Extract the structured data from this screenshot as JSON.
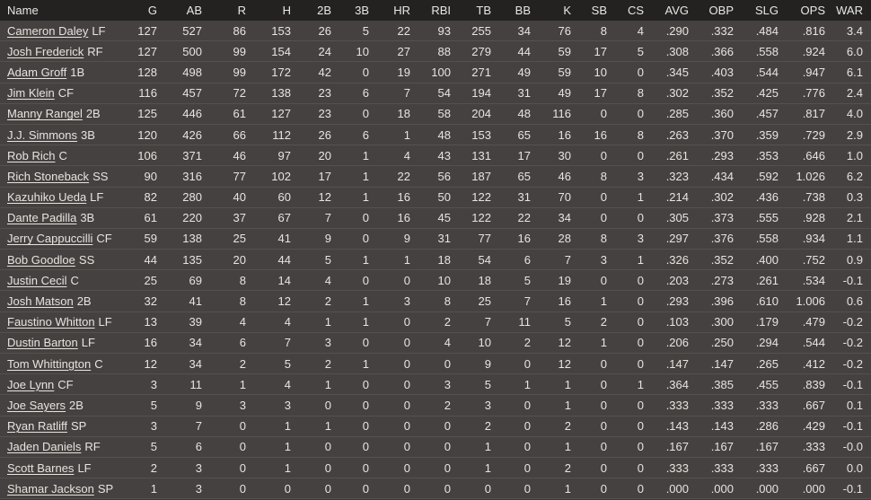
{
  "colors": {
    "header_bg": "#242220",
    "row_bg": "#454140",
    "row_divider": "#55514c",
    "text": "#e7e4df"
  },
  "table": {
    "columns": [
      {
        "key": "name",
        "label": "Name"
      },
      {
        "key": "g",
        "label": "G"
      },
      {
        "key": "ab",
        "label": "AB"
      },
      {
        "key": "r",
        "label": "R"
      },
      {
        "key": "h",
        "label": "H"
      },
      {
        "key": "2b",
        "label": "2B"
      },
      {
        "key": "3b",
        "label": "3B"
      },
      {
        "key": "hr",
        "label": "HR"
      },
      {
        "key": "rbi",
        "label": "RBI"
      },
      {
        "key": "tb",
        "label": "TB"
      },
      {
        "key": "bb",
        "label": "BB"
      },
      {
        "key": "k",
        "label": "K"
      },
      {
        "key": "sb",
        "label": "SB"
      },
      {
        "key": "cs",
        "label": "CS"
      },
      {
        "key": "avg",
        "label": "AVG"
      },
      {
        "key": "obp",
        "label": "OBP"
      },
      {
        "key": "slg",
        "label": "SLG"
      },
      {
        "key": "ops",
        "label": "OPS"
      },
      {
        "key": "war",
        "label": "WAR"
      }
    ],
    "rows": [
      {
        "name": "Cameron Daley",
        "position": "LF",
        "stats": [
          "127",
          "527",
          "86",
          "153",
          "26",
          "5",
          "22",
          "93",
          "255",
          "34",
          "76",
          "8",
          "4",
          ".290",
          ".332",
          ".484",
          ".816",
          "3.4"
        ]
      },
      {
        "name": "Josh Frederick",
        "position": "RF",
        "stats": [
          "127",
          "500",
          "99",
          "154",
          "24",
          "10",
          "27",
          "88",
          "279",
          "44",
          "59",
          "17",
          "5",
          ".308",
          ".366",
          ".558",
          ".924",
          "6.0"
        ]
      },
      {
        "name": "Adam Groff",
        "position": "1B",
        "stats": [
          "128",
          "498",
          "99",
          "172",
          "42",
          "0",
          "19",
          "100",
          "271",
          "49",
          "59",
          "10",
          "0",
          ".345",
          ".403",
          ".544",
          ".947",
          "6.1"
        ]
      },
      {
        "name": "Jim Klein",
        "position": "CF",
        "stats": [
          "116",
          "457",
          "72",
          "138",
          "23",
          "6",
          "7",
          "54",
          "194",
          "31",
          "49",
          "17",
          "8",
          ".302",
          ".352",
          ".425",
          ".776",
          "2.4"
        ]
      },
      {
        "name": "Manny Rangel",
        "position": "2B",
        "stats": [
          "125",
          "446",
          "61",
          "127",
          "23",
          "0",
          "18",
          "58",
          "204",
          "48",
          "116",
          "0",
          "0",
          ".285",
          ".360",
          ".457",
          ".817",
          "4.0"
        ]
      },
      {
        "name": "J.J. Simmons",
        "position": "3B",
        "stats": [
          "120",
          "426",
          "66",
          "112",
          "26",
          "6",
          "1",
          "48",
          "153",
          "65",
          "16",
          "16",
          "8",
          ".263",
          ".370",
          ".359",
          ".729",
          "2.9"
        ]
      },
      {
        "name": "Rob Rich",
        "position": "C",
        "stats": [
          "106",
          "371",
          "46",
          "97",
          "20",
          "1",
          "4",
          "43",
          "131",
          "17",
          "30",
          "0",
          "0",
          ".261",
          ".293",
          ".353",
          ".646",
          "1.0"
        ]
      },
      {
        "name": "Rich Stoneback",
        "position": "SS",
        "stats": [
          "90",
          "316",
          "77",
          "102",
          "17",
          "1",
          "22",
          "56",
          "187",
          "65",
          "46",
          "8",
          "3",
          ".323",
          ".434",
          ".592",
          "1.026",
          "6.2"
        ]
      },
      {
        "name": "Kazuhiko Ueda",
        "position": "LF",
        "stats": [
          "82",
          "280",
          "40",
          "60",
          "12",
          "1",
          "16",
          "50",
          "122",
          "31",
          "70",
          "0",
          "1",
          ".214",
          ".302",
          ".436",
          ".738",
          "0.3"
        ]
      },
      {
        "name": "Dante Padilla",
        "position": "3B",
        "stats": [
          "61",
          "220",
          "37",
          "67",
          "7",
          "0",
          "16",
          "45",
          "122",
          "22",
          "34",
          "0",
          "0",
          ".305",
          ".373",
          ".555",
          ".928",
          "2.1"
        ]
      },
      {
        "name": "Jerry Cappuccilli",
        "position": "CF",
        "stats": [
          "59",
          "138",
          "25",
          "41",
          "9",
          "0",
          "9",
          "31",
          "77",
          "16",
          "28",
          "8",
          "3",
          ".297",
          ".376",
          ".558",
          ".934",
          "1.1"
        ]
      },
      {
        "name": "Bob Goodloe",
        "position": "SS",
        "stats": [
          "44",
          "135",
          "20",
          "44",
          "5",
          "1",
          "1",
          "18",
          "54",
          "6",
          "7",
          "3",
          "1",
          ".326",
          ".352",
          ".400",
          ".752",
          "0.9"
        ]
      },
      {
        "name": "Justin Cecil",
        "position": "C",
        "stats": [
          "25",
          "69",
          "8",
          "14",
          "4",
          "0",
          "0",
          "10",
          "18",
          "5",
          "19",
          "0",
          "0",
          ".203",
          ".273",
          ".261",
          ".534",
          "-0.1"
        ]
      },
      {
        "name": "Josh Matson",
        "position": "2B",
        "stats": [
          "32",
          "41",
          "8",
          "12",
          "2",
          "1",
          "3",
          "8",
          "25",
          "7",
          "16",
          "1",
          "0",
          ".293",
          ".396",
          ".610",
          "1.006",
          "0.6"
        ]
      },
      {
        "name": "Faustino Whitton",
        "position": "LF",
        "stats": [
          "13",
          "39",
          "4",
          "4",
          "1",
          "1",
          "0",
          "2",
          "7",
          "11",
          "5",
          "2",
          "0",
          ".103",
          ".300",
          ".179",
          ".479",
          "-0.2"
        ]
      },
      {
        "name": "Dustin Barton",
        "position": "LF",
        "stats": [
          "16",
          "34",
          "6",
          "7",
          "3",
          "0",
          "0",
          "4",
          "10",
          "2",
          "12",
          "1",
          "0",
          ".206",
          ".250",
          ".294",
          ".544",
          "-0.2"
        ]
      },
      {
        "name": "Tom Whittington",
        "position": "C",
        "stats": [
          "12",
          "34",
          "2",
          "5",
          "2",
          "1",
          "0",
          "0",
          "9",
          "0",
          "12",
          "0",
          "0",
          ".147",
          ".147",
          ".265",
          ".412",
          "-0.2"
        ]
      },
      {
        "name": "Joe Lynn",
        "position": "CF",
        "stats": [
          "3",
          "11",
          "1",
          "4",
          "1",
          "0",
          "0",
          "3",
          "5",
          "1",
          "1",
          "0",
          "1",
          ".364",
          ".385",
          ".455",
          ".839",
          "-0.1"
        ]
      },
      {
        "name": "Joe Sayers",
        "position": "2B",
        "stats": [
          "5",
          "9",
          "3",
          "3",
          "0",
          "0",
          "0",
          "2",
          "3",
          "0",
          "1",
          "0",
          "0",
          ".333",
          ".333",
          ".333",
          ".667",
          "0.1"
        ]
      },
      {
        "name": "Ryan Ratliff",
        "position": "SP",
        "stats": [
          "3",
          "7",
          "0",
          "1",
          "1",
          "0",
          "0",
          "0",
          "2",
          "0",
          "2",
          "0",
          "0",
          ".143",
          ".143",
          ".286",
          ".429",
          "-0.1"
        ]
      },
      {
        "name": "Jaden Daniels",
        "position": "RF",
        "stats": [
          "5",
          "6",
          "0",
          "1",
          "0",
          "0",
          "0",
          "0",
          "1",
          "0",
          "1",
          "0",
          "0",
          ".167",
          ".167",
          ".167",
          ".333",
          "-0.0"
        ]
      },
      {
        "name": "Scott Barnes",
        "position": "LF",
        "stats": [
          "2",
          "3",
          "0",
          "1",
          "0",
          "0",
          "0",
          "0",
          "1",
          "0",
          "2",
          "0",
          "0",
          ".333",
          ".333",
          ".333",
          ".667",
          "0.0"
        ]
      },
      {
        "name": "Shamar Jackson",
        "position": "SP",
        "stats": [
          "1",
          "3",
          "0",
          "0",
          "0",
          "0",
          "0",
          "0",
          "0",
          "0",
          "1",
          "0",
          "0",
          ".000",
          ".000",
          ".000",
          ".000",
          "-0.1"
        ]
      }
    ]
  }
}
